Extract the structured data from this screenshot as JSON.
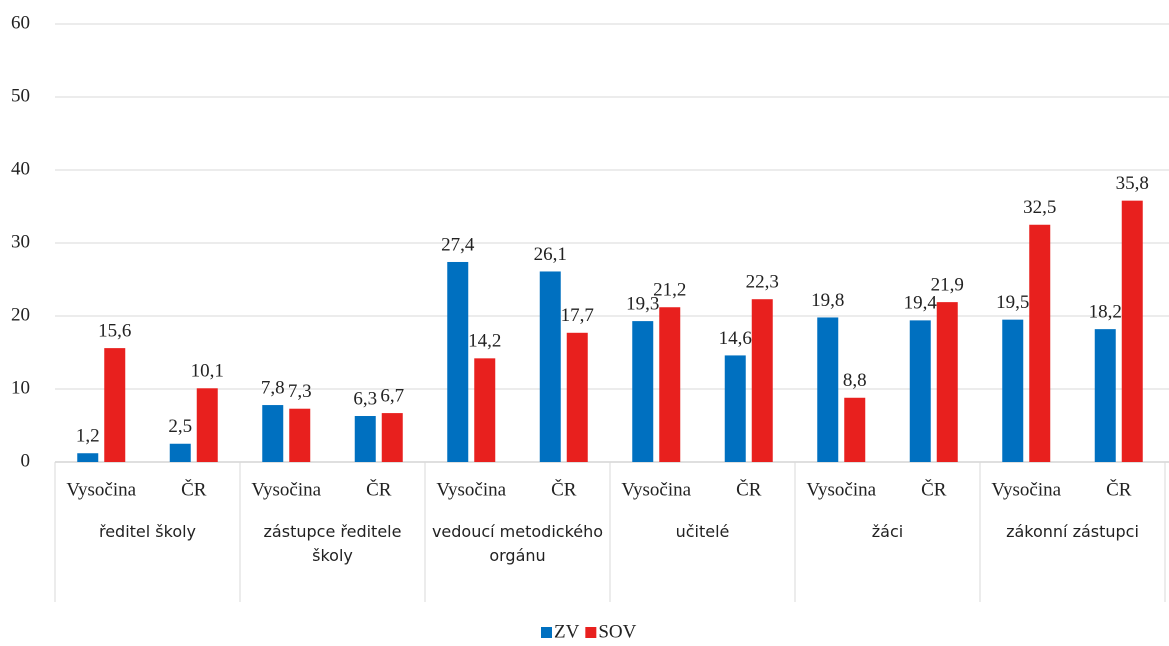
{
  "chart_data": {
    "type": "bar",
    "groups": [
      "ředitel školy",
      "zástupce ředitele školy",
      "vedoucí metodického orgánu",
      "učitelé",
      "žáci",
      "zákonní zástupci"
    ],
    "categories": [
      "Vysočina",
      "ČR",
      "Vysočina",
      "ČR",
      "Vysočina",
      "ČR",
      "Vysočina",
      "ČR",
      "Vysočina",
      "ČR",
      "Vysočina",
      "ČR"
    ],
    "series": [
      {
        "name": "ZV",
        "color": "#0070c0",
        "values": [
          1.2,
          2.5,
          7.8,
          6.3,
          27.4,
          26.1,
          19.3,
          14.6,
          19.8,
          19.4,
          19.5,
          18.2
        ],
        "value_labels": [
          "1,2",
          "2,5",
          "7,8",
          "6,3",
          "27,4",
          "26,1",
          "19,3",
          "14,6",
          "19,8",
          "19,4",
          "19,5",
          "18,2"
        ]
      },
      {
        "name": "SOV",
        "color": "#e8201e",
        "values": [
          15.6,
          10.1,
          7.3,
          6.7,
          14.2,
          17.7,
          21.2,
          22.3,
          8.8,
          21.9,
          32.5,
          35.8
        ],
        "value_labels": [
          "15,6",
          "10,1",
          "7,3",
          "6,7",
          "14,2",
          "17,7",
          "21,2",
          "22,3",
          "8,8",
          "21,9",
          "32,5",
          "35,8"
        ]
      }
    ],
    "ylim": [
      0,
      60
    ],
    "yticks": [
      0,
      10,
      20,
      30,
      40,
      50,
      60
    ],
    "grid": true,
    "legend": "bottom"
  }
}
